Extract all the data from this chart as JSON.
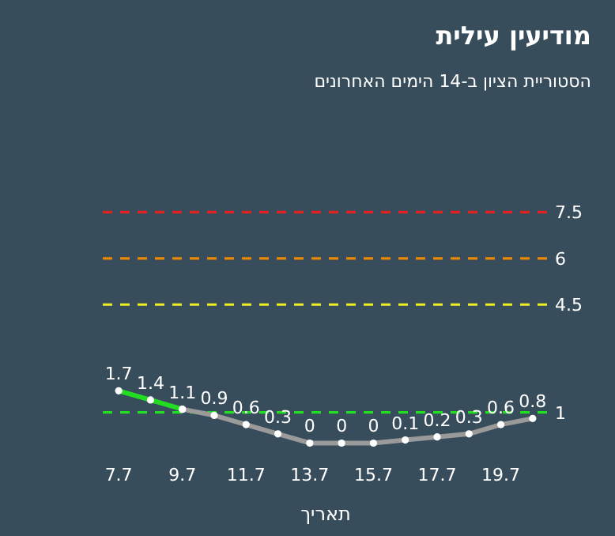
{
  "chart_data": {
    "type": "line",
    "title": "מודיעין עילית",
    "subtitle": "הסטוריית הציון ב-14 הימים האחרונים",
    "xlabel": "תאריך",
    "categories": [
      "7.7",
      null,
      "9.7",
      null,
      "11.7",
      null,
      "13.7",
      null,
      "15.7",
      null,
      "17.7",
      null,
      "19.7",
      null
    ],
    "series": [
      {
        "color": "#22dd22",
        "values": [
          1.7,
          1.4,
          1.1,
          null,
          null,
          null,
          null,
          null,
          null,
          null,
          null,
          null,
          null,
          null
        ],
        "value_labels": [
          "1.7",
          "1.4",
          null,
          null,
          null,
          null,
          null,
          null,
          null,
          null,
          null,
          null,
          null,
          null
        ]
      },
      {
        "color": "#9a9a9a",
        "values": [
          null,
          null,
          1.1,
          0.9,
          0.6,
          0.3,
          0,
          0,
          0,
          0.1,
          0.2,
          0.3,
          0.6,
          0.8
        ],
        "value_labels": [
          null,
          null,
          "1.1",
          "0.9",
          "0.6",
          "0.3",
          "0",
          "0",
          "0",
          "0.1",
          "0.2",
          "0.3",
          "0.6",
          "0.8"
        ]
      }
    ],
    "tick_labels": "x",
    "marker": "circle",
    "ref_lines": [
      {
        "axis": "y",
        "value": 7.5,
        "label": "7.5",
        "color": "#dd2222",
        "line_style": "dashed"
      },
      {
        "axis": "y",
        "value": 6,
        "label": "6",
        "color": "#ee8800",
        "line_style": "dashed"
      },
      {
        "axis": "y",
        "value": 4.5,
        "label": "4.5",
        "color": "#eeee22",
        "line_style": "dashed"
      },
      {
        "axis": "y",
        "value": 1,
        "label": "1",
        "color": "#22dd22",
        "line_style": "dashed"
      }
    ]
  }
}
